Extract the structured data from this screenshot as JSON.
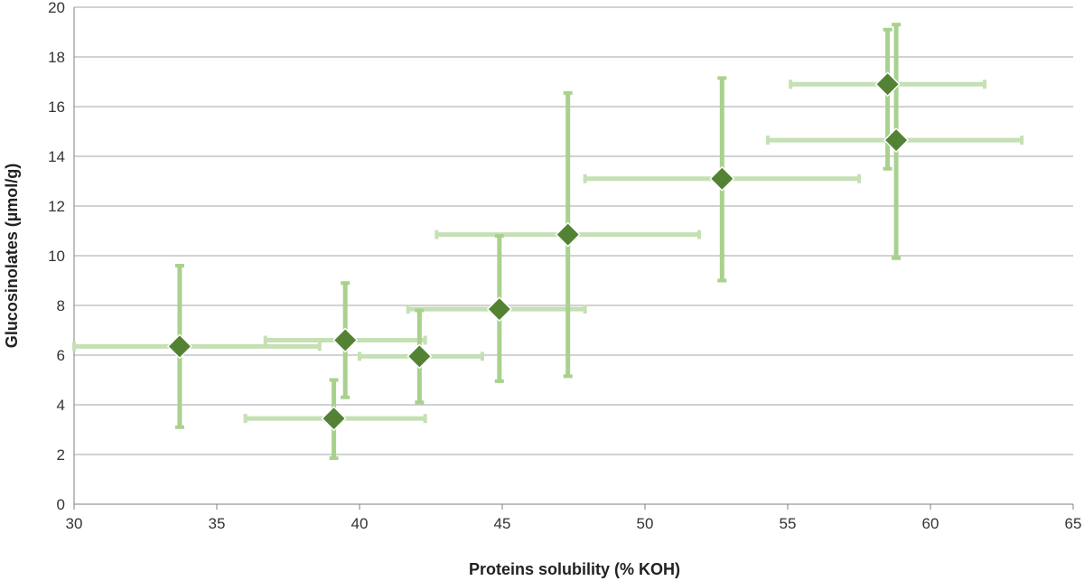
{
  "chart_data": {
    "type": "scatter",
    "title": "",
    "xlabel": "Proteins solubility (% KOH)",
    "ylabel": "Glucosinolates (µmol/g)",
    "xlim": [
      30,
      65
    ],
    "ylim": [
      0,
      20
    ],
    "x_ticks": [
      "30",
      "35",
      "40",
      "45",
      "50",
      "55",
      "60",
      "65"
    ],
    "y_ticks": [
      "0",
      "2",
      "4",
      "6",
      "8",
      "10",
      "12",
      "14",
      "16",
      "18",
      "20"
    ],
    "grid": "horizontal",
    "legend": "none",
    "colors": {
      "marker": "#548235",
      "marker_edge": "#ffffff",
      "y_error": "#a9d18e",
      "x_error": "#c5e0b4",
      "grid": "#a6a6a6",
      "axis": "#7f7f7f"
    },
    "points": [
      {
        "x": 33.7,
        "y": 6.35,
        "x_err": [
          30.0,
          38.6
        ],
        "y_err": [
          3.1,
          9.6
        ]
      },
      {
        "x": 39.1,
        "y": 3.45,
        "x_err": [
          36.0,
          42.3
        ],
        "y_err": [
          1.85,
          5.0
        ]
      },
      {
        "x": 39.5,
        "y": 6.6,
        "x_err": [
          36.7,
          42.3
        ],
        "y_err": [
          4.3,
          8.9
        ]
      },
      {
        "x": 42.1,
        "y": 5.95,
        "x_err": [
          40.0,
          44.3
        ],
        "y_err": [
          4.1,
          7.8
        ]
      },
      {
        "x": 44.9,
        "y": 7.85,
        "x_err": [
          41.7,
          47.9
        ],
        "y_err": [
          4.95,
          10.8
        ]
      },
      {
        "x": 47.3,
        "y": 10.85,
        "x_err": [
          42.7,
          51.9
        ],
        "y_err": [
          5.15,
          16.55
        ]
      },
      {
        "x": 52.7,
        "y": 13.1,
        "x_err": [
          47.9,
          57.5
        ],
        "y_err": [
          9.0,
          17.15
        ]
      },
      {
        "x": 58.5,
        "y": 16.9,
        "x_err": [
          55.1,
          61.9
        ],
        "y_err": [
          13.5,
          19.1
        ]
      },
      {
        "x": 58.8,
        "y": 14.65,
        "x_err": [
          54.3,
          63.2
        ],
        "y_err": [
          9.9,
          19.3
        ]
      }
    ]
  }
}
